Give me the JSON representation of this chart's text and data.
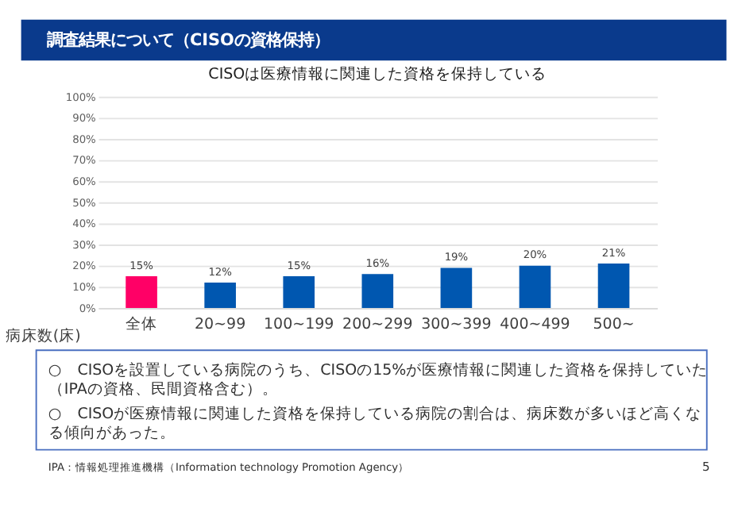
{
  "chart_data": {
    "type": "bar",
    "title": "調査結果について（CISOの資格保持）",
    "subtitle": "CISOは医療情報に関連した資格を保持している",
    "xlabel": "病床数(床)",
    "categories": [
      "全体",
      "20~99",
      "100~199",
      "200~299",
      "300~399",
      "400~499",
      "500~"
    ],
    "values": [
      15,
      12,
      15,
      16,
      19,
      20,
      21
    ],
    "colors": [
      "#ff0066",
      "#0057b0",
      "#0057b0",
      "#0057b0",
      "#0057b0",
      "#0057b0",
      "#0057b0"
    ],
    "value_labels": [
      "15%",
      "12%",
      "15%",
      "16%",
      "19%",
      "20%",
      "21%"
    ],
    "ylim": [
      0,
      100
    ],
    "yticks": [
      {
        "value": 0,
        "label": "0%"
      },
      {
        "value": 10,
        "label": "10%"
      },
      {
        "value": 20,
        "label": "20%"
      },
      {
        "value": 30,
        "label": "30%"
      },
      {
        "value": 40,
        "label": "40%"
      },
      {
        "value": 50,
        "label": "50%"
      },
      {
        "value": 60,
        "label": "60%"
      },
      {
        "value": 70,
        "label": "70%"
      },
      {
        "value": 80,
        "label": "80%"
      },
      {
        "value": 90,
        "label": "90%"
      },
      {
        "value": 100,
        "label": "100%"
      }
    ],
    "grid": "y",
    "annotations": [
      "○　CISOを設置している病院のうち、CISOの15%が医療情報に関連した資格を保持していた（IPAの資格、民間資格含む）。",
      "○　CISOが医療情報に関連した資格を保持している病院の割合は、病床数が多いほど高くなる傾向があった。",
      "IPA：情報処理推進機構（Information technology Promotion Agency）",
      "5"
    ]
  }
}
